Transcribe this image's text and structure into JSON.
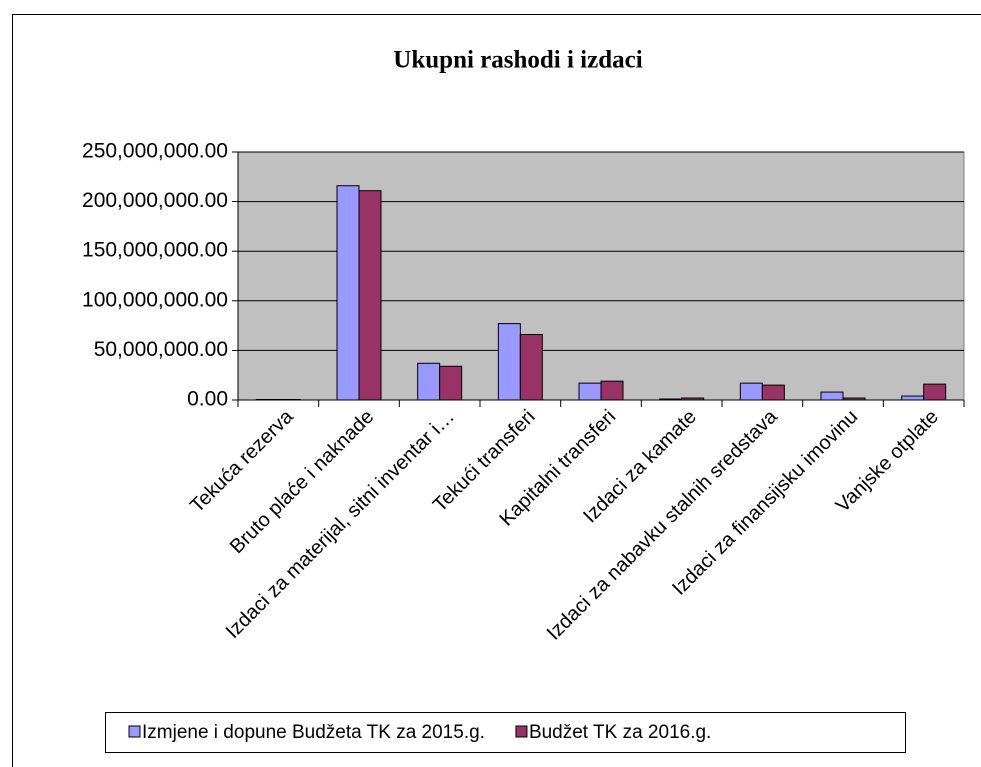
{
  "chart_data": {
    "type": "bar",
    "title": "Ukupni rashodi i izdaci",
    "categories": [
      "Tekuća rezerva",
      "Bruto plaće i naknade",
      "Izdaci za materijal, sitni inventar i…",
      "Tekući transferi",
      "Kapitalni transferi",
      "Izdaci za kamate",
      "Izdaci za nabavku stalnih sredstava",
      "Izdaci za finansijsku imovinu",
      "Vanjske otplate"
    ],
    "series": [
      {
        "name": "Izmjene i dopune Budžeta TK za 2015.g.",
        "color": "#9999ff",
        "values": [
          500000,
          216000000,
          37000000,
          77000000,
          17000000,
          1000000,
          17000000,
          8000000,
          4000000
        ]
      },
      {
        "name": "Budžet TK za 2016.g.",
        "color": "#993366",
        "values": [
          500000,
          211000000,
          34000000,
          66000000,
          19000000,
          2000000,
          15000000,
          2000000,
          16000000
        ]
      }
    ],
    "ylim": [
      0,
      250000000
    ],
    "yticks": [
      {
        "value": 0,
        "label": "0.00"
      },
      {
        "value": 50000000,
        "label": "50,000,000.00"
      },
      {
        "value": 100000000,
        "label": "100,000,000.00"
      },
      {
        "value": 150000000,
        "label": "150,000,000.00"
      },
      {
        "value": 200000000,
        "label": "200,000,000.00"
      },
      {
        "value": 250000000,
        "label": "250,000,000.00"
      }
    ],
    "grid": true,
    "legend": "bottom"
  }
}
